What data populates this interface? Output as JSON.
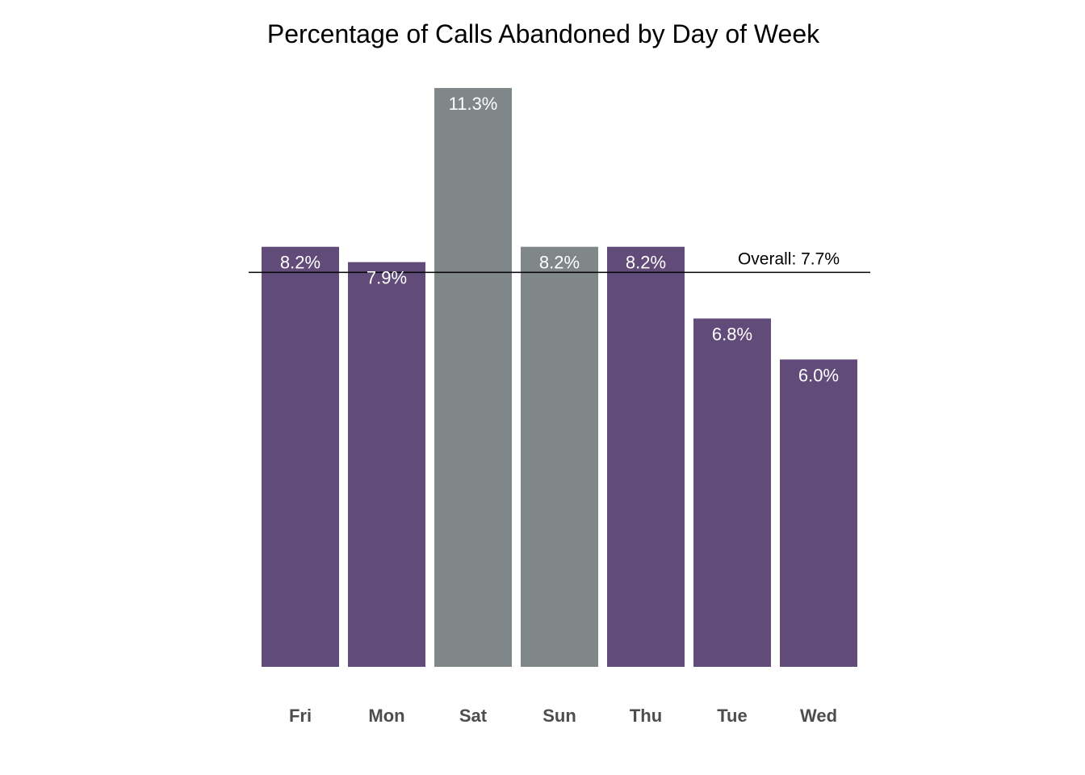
{
  "chart_data": {
    "type": "bar",
    "title": "Percentage of Calls Abandoned by Day of Week",
    "categories": [
      "Fri",
      "Mon",
      "Sat",
      "Sun",
      "Thu",
      "Tue",
      "Wed"
    ],
    "values": [
      8.2,
      7.9,
      11.3,
      8.2,
      8.2,
      6.8,
      6.0
    ],
    "value_labels": [
      "8.2%",
      "7.9%",
      "11.3%",
      "8.2%",
      "8.2%",
      "6.8%",
      "6.0%"
    ],
    "bar_colors": [
      "#614b79",
      "#614b79",
      "#7f8788",
      "#7f8788",
      "#614b79",
      "#614b79",
      "#614b79"
    ],
    "reference_line": {
      "value": 7.7,
      "label": "Overall: 7.7%",
      "color": "#000000"
    },
    "xlabel": "",
    "ylabel": "",
    "ylim": [
      0,
      11.3
    ],
    "grid": false,
    "legend": "none"
  },
  "colors": {
    "weekday": "#614b79",
    "weekend": "#7f8788",
    "category_text": "#4d4d4d",
    "value_text": "#ffffff"
  }
}
